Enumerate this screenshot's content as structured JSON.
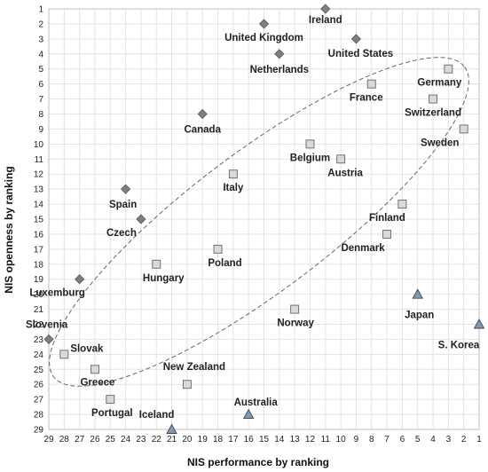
{
  "chart_data": {
    "type": "scatter",
    "title": "",
    "xlabel": "NIS performance by ranking",
    "ylabel": "NIS openness by ranking",
    "xlim": [
      29,
      1
    ],
    "ylim": [
      1,
      29
    ],
    "x_ticks": [
      29,
      28,
      27,
      26,
      25,
      24,
      23,
      22,
      21,
      20,
      19,
      18,
      17,
      16,
      15,
      14,
      13,
      12,
      11,
      10,
      9,
      8,
      7,
      6,
      5,
      4,
      3,
      2,
      1
    ],
    "y_ticks": [
      1,
      2,
      3,
      4,
      5,
      6,
      7,
      8,
      9,
      10,
      11,
      12,
      13,
      14,
      15,
      16,
      17,
      18,
      19,
      20,
      21,
      22,
      23,
      24,
      25,
      26,
      27,
      28,
      29
    ],
    "x_reversed": true,
    "y_reversed": true,
    "grid": true,
    "legend": "none",
    "series": [
      {
        "marker": "diamond",
        "color": "#7f7f7f",
        "points": [
          {
            "label": "Ireland",
            "x": 11,
            "y": 1
          },
          {
            "label": "United Kingdom",
            "x": 15,
            "y": 2
          },
          {
            "label": "United States",
            "x": 9,
            "y": 3
          },
          {
            "label": "Netherlands",
            "x": 14,
            "y": 4
          },
          {
            "label": "Canada",
            "x": 19,
            "y": 8
          },
          {
            "label": "Spain",
            "x": 24,
            "y": 13
          },
          {
            "label": "Czech",
            "x": 23,
            "y": 15
          },
          {
            "label": "Luxemburg",
            "x": 27,
            "y": 19
          },
          {
            "label": "Slovenia",
            "x": 29,
            "y": 23
          }
        ]
      },
      {
        "marker": "square",
        "color": "#d9d9d9",
        "points": [
          {
            "label": "Germany",
            "x": 3,
            "y": 5
          },
          {
            "label": "France",
            "x": 8,
            "y": 6
          },
          {
            "label": "Switzerland",
            "x": 4,
            "y": 7
          },
          {
            "label": "Sweden",
            "x": 2,
            "y": 9
          },
          {
            "label": "Belgium",
            "x": 12,
            "y": 10
          },
          {
            "label": "Austria",
            "x": 10,
            "y": 11
          },
          {
            "label": "Italy",
            "x": 17,
            "y": 12
          },
          {
            "label": "Finland",
            "x": 6,
            "y": 14
          },
          {
            "label": "Denmark",
            "x": 7,
            "y": 16
          },
          {
            "label": "Poland",
            "x": 18,
            "y": 17
          },
          {
            "label": "Hungary",
            "x": 22,
            "y": 18
          },
          {
            "label": "Norway",
            "x": 13,
            "y": 21
          },
          {
            "label": "Slovak",
            "x": 28,
            "y": 24
          },
          {
            "label": "Greece",
            "x": 26,
            "y": 25
          },
          {
            "label": "New Zealand",
            "x": 20,
            "y": 26
          },
          {
            "label": "Portugal",
            "x": 25,
            "y": 27
          }
        ]
      },
      {
        "marker": "triangle",
        "color": "#8497b0",
        "points": [
          {
            "label": "Japan",
            "x": 5,
            "y": 20
          },
          {
            "label": "S. Korea",
            "x": 1,
            "y": 22
          },
          {
            "label": "Australia",
            "x": 16,
            "y": 28
          },
          {
            "label": "Iceland",
            "x": 21,
            "y": 29
          }
        ]
      }
    ]
  }
}
